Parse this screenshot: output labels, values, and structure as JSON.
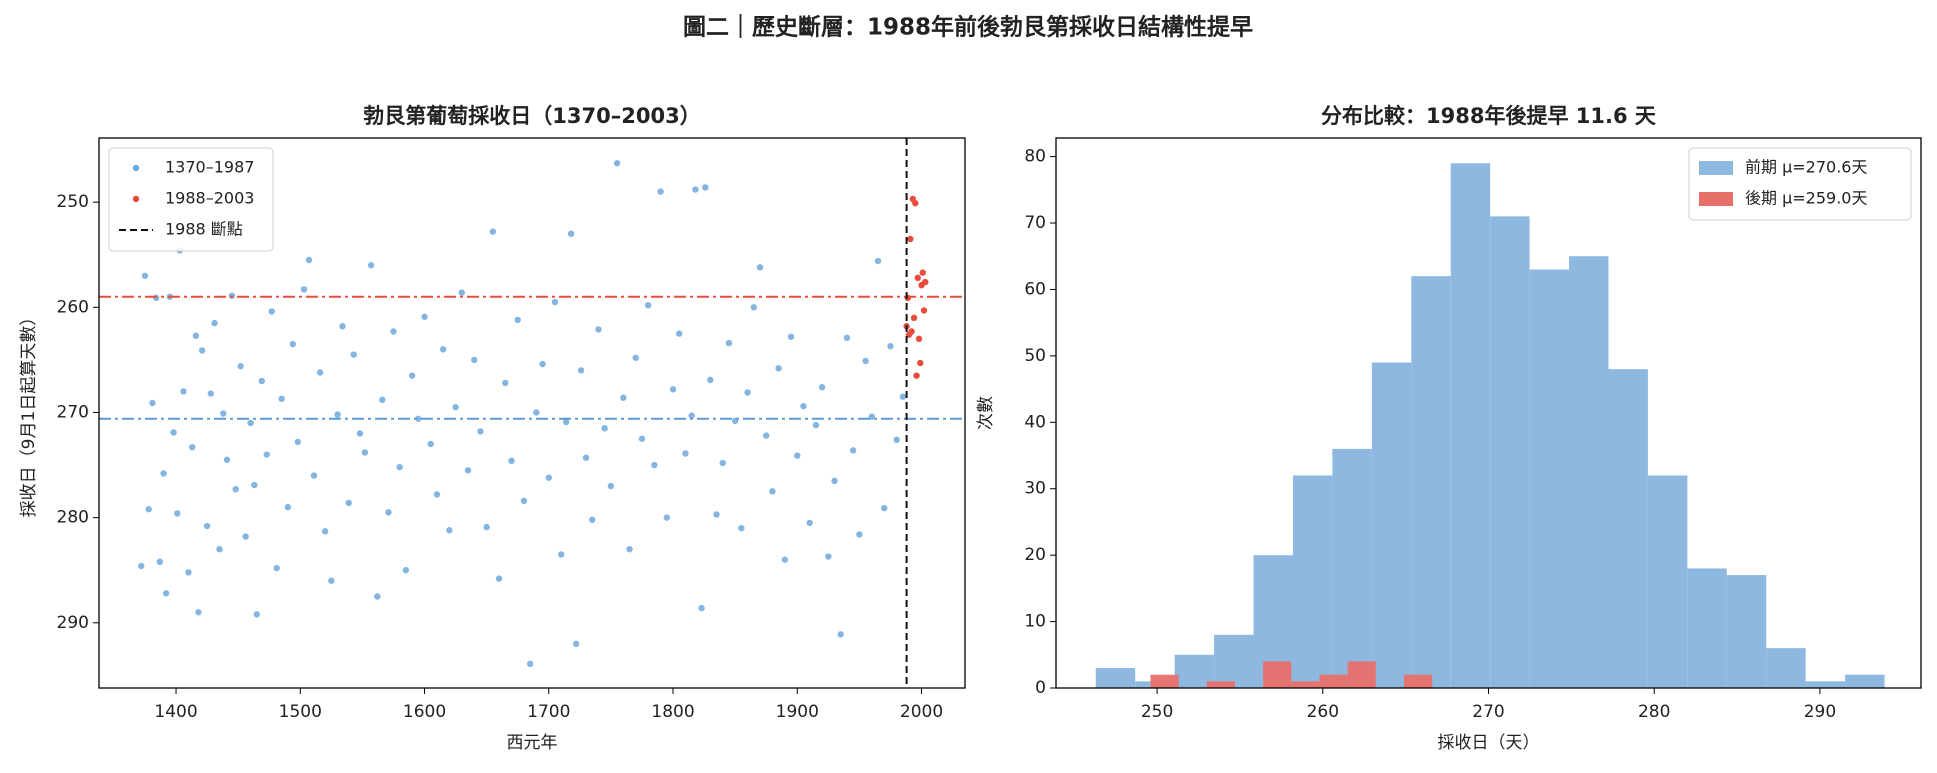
{
  "title": "圖二｜歷史斷層：1988年前後勃艮第採收日結構性提早",
  "chart_data": [
    {
      "type": "scatter",
      "title": "勃艮第葡萄採收日（1370–2003）",
      "x_label": "西元年",
      "y_label": "採收日（9月1日起算天數）",
      "xlim": [
        1338,
        2035
      ],
      "ylim": [
        296.2,
        243.9
      ],
      "xticks": [
        1400,
        1500,
        1600,
        1700,
        1800,
        1900,
        2000
      ],
      "yticks": [
        250,
        260,
        270,
        280,
        290
      ],
      "legend": "upper left",
      "series": [
        {
          "name": "1370–1987",
          "color": "#6fa8dc",
          "x": [
            1372,
            1375,
            1378,
            1381,
            1384,
            1387,
            1390,
            1392,
            1395,
            1398,
            1401,
            1403,
            1406,
            1410,
            1413,
            1416,
            1418,
            1421,
            1425,
            1428,
            1431,
            1435,
            1438,
            1441,
            1445,
            1448,
            1452,
            1456,
            1460,
            1463,
            1465,
            1469,
            1473,
            1477,
            1481,
            1485,
            1490,
            1494,
            1498,
            1503,
            1507,
            1511,
            1516,
            1520,
            1525,
            1530,
            1534,
            1539,
            1543,
            1548,
            1552,
            1557,
            1562,
            1566,
            1571,
            1575,
            1580,
            1585,
            1590,
            1595,
            1600,
            1605,
            1610,
            1615,
            1620,
            1625,
            1630,
            1635,
            1640,
            1645,
            1650,
            1655,
            1660,
            1665,
            1670,
            1675,
            1680,
            1685,
            1690,
            1695,
            1700,
            1705,
            1710,
            1714,
            1718,
            1722,
            1726,
            1730,
            1735,
            1740,
            1745,
            1750,
            1755,
            1760,
            1765,
            1770,
            1775,
            1780,
            1785,
            1790,
            1795,
            1800,
            1805,
            1810,
            1815,
            1818,
            1823,
            1826,
            1830,
            1835,
            1840,
            1845,
            1850,
            1855,
            1860,
            1865,
            1870,
            1875,
            1880,
            1885,
            1890,
            1895,
            1900,
            1905,
            1910,
            1915,
            1920,
            1925,
            1930,
            1935,
            1940,
            1945,
            1950,
            1955,
            1960,
            1965,
            1970,
            1975,
            1980,
            1985
          ],
          "values": [
            284.6,
            257.0,
            279.2,
            269.1,
            259.1,
            284.2,
            275.8,
            287.2,
            259.0,
            271.9,
            279.6,
            254.6,
            268.0,
            285.2,
            273.3,
            262.7,
            289.0,
            264.1,
            280.8,
            268.2,
            261.5,
            283.0,
            270.1,
            274.5,
            258.9,
            277.3,
            265.6,
            281.8,
            271.0,
            276.9,
            289.2,
            267.0,
            274.0,
            260.4,
            284.8,
            268.7,
            279.0,
            263.5,
            272.8,
            258.3,
            255.5,
            276.0,
            266.2,
            281.3,
            286.0,
            270.2,
            261.8,
            278.6,
            264.5,
            272.0,
            273.8,
            256.0,
            287.5,
            268.8,
            279.5,
            262.3,
            275.2,
            285.0,
            266.5,
            270.6,
            260.9,
            273.0,
            277.8,
            264.0,
            281.2,
            269.5,
            258.6,
            275.5,
            265.0,
            271.8,
            280.9,
            252.8,
            285.8,
            267.2,
            274.6,
            261.2,
            278.4,
            293.9,
            270.0,
            265.4,
            276.2,
            259.5,
            283.5,
            270.9,
            253.0,
            292.0,
            266.0,
            274.3,
            280.2,
            262.1,
            271.5,
            277.0,
            246.3,
            268.6,
            283.0,
            264.8,
            272.5,
            259.8,
            275.0,
            249.0,
            280.0,
            267.8,
            262.5,
            273.9,
            270.3,
            248.8,
            288.6,
            248.6,
            266.9,
            279.7,
            274.8,
            263.4,
            270.8,
            281.0,
            268.1,
            260.0,
            256.2,
            272.2,
            277.5,
            265.8,
            284.0,
            262.8,
            274.1,
            269.4,
            280.5,
            271.2,
            267.6,
            283.7,
            276.5,
            291.1,
            262.9,
            273.6,
            281.6,
            265.1,
            270.4,
            255.6,
            279.1,
            263.7,
            272.6,
            268.5
          ]
        },
        {
          "name": "1988–2003",
          "color": "#e74c3c",
          "x": [
            1988,
            1989,
            1990,
            1991,
            1992,
            1993,
            1994,
            1995,
            1996,
            1997,
            1998,
            1999,
            2000,
            2001,
            2002,
            2003
          ],
          "values": [
            261.8,
            259.1,
            262.6,
            253.5,
            262.3,
            249.7,
            261.0,
            250.1,
            266.5,
            257.2,
            263.0,
            265.3,
            257.9,
            256.7,
            260.3,
            257.6
          ]
        }
      ],
      "hlines": [
        {
          "value": 270.6,
          "color": "#5b9bd5"
        },
        {
          "value": 259.0,
          "color": "#e74c3c"
        }
      ],
      "vline": {
        "value": 1988,
        "name": "1988 斷點",
        "color": "#111111"
      }
    },
    {
      "type": "histogram",
      "title": "分布比較：1988年後提早 11.6 天",
      "x_label": "採收日（天）",
      "y_label": "次數",
      "xlim": [
        243.9,
        296.1
      ],
      "ylim": [
        0,
        82.8
      ],
      "xticks": [
        250,
        260,
        270,
        280,
        290
      ],
      "yticks": [
        0,
        10,
        20,
        30,
        40,
        50,
        60,
        70,
        80
      ],
      "legend": "upper right",
      "series": [
        {
          "name": "前期 μ=270.6天",
          "color": "#8fb8e0",
          "bins": [
            246.3,
            248.68,
            251.06,
            253.44,
            255.82,
            258.2,
            260.58,
            262.96,
            265.34,
            267.72,
            270.1,
            272.48,
            274.86,
            277.24,
            279.62,
            282.0,
            284.38,
            286.76,
            289.14,
            291.52,
            293.9
          ],
          "values": [
            3,
            1,
            5,
            8,
            20,
            32,
            36,
            49,
            62,
            79,
            71,
            63,
            65,
            48,
            32,
            18,
            17,
            6,
            1,
            2
          ]
        },
        {
          "name": "後期 μ=259.0天",
          "color": "#e8706a",
          "bins": [
            249.6,
            251.3,
            253.0,
            254.7,
            256.4,
            258.1,
            259.8,
            261.5,
            263.2,
            264.9,
            266.6
          ],
          "values": [
            2,
            0,
            1,
            0,
            4,
            1,
            2,
            4,
            0,
            2
          ]
        }
      ]
    }
  ]
}
